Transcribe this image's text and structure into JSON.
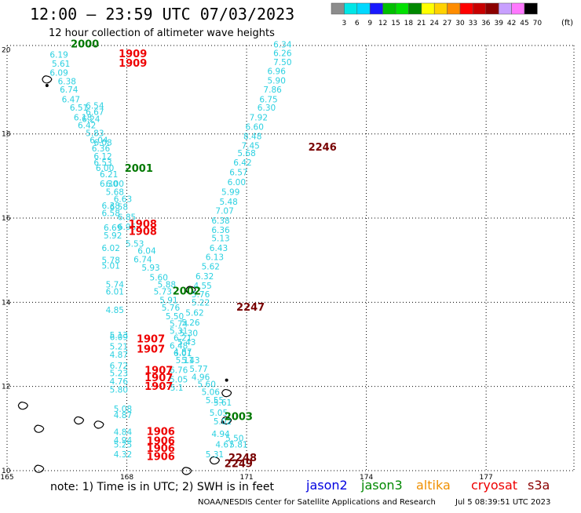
{
  "header": {
    "title": "12:00 – 23:59 UTC 07/03/2023",
    "subtitle": "12 hour collection of altimeter wave heights"
  },
  "legend": {
    "unit": "(ft)",
    "labels": [
      "3",
      "6",
      "9",
      "12",
      "15",
      "18",
      "21",
      "24",
      "27",
      "30",
      "33",
      "36",
      "39",
      "42",
      "45",
      "70"
    ],
    "colors": [
      "#8c8c8c",
      "#00e6e6",
      "#00d8ff",
      "#1919ff",
      "#00c000",
      "#00e000",
      "#008800",
      "#ffff00",
      "#ffd200",
      "#ff8c00",
      "#ff0000",
      "#c80000",
      "#8b0000",
      "#c8a0ff",
      "#ff78ff",
      "#000000"
    ]
  },
  "colors": {
    "track": "#2ad0e0",
    "grid": "#000000",
    "pass_red": "#ee0000",
    "pass_green": "#007800",
    "pass_maroon": "#780000",
    "sat_jason2": "#0000e0",
    "sat_jason3": "#008800",
    "sat_altika": "#f09000",
    "sat_cryosat": "#ee0000",
    "sat_s3a": "#8b0000"
  },
  "axes": {
    "x_ticks": [
      "165",
      "168",
      "171",
      "174",
      "177"
    ],
    "y_ticks": [
      "20",
      "18",
      "16",
      "14",
      "12",
      "10"
    ]
  },
  "track_labels": [
    {
      "t": "6.19",
      "lon": 166.3,
      "lat": 19.81
    },
    {
      "t": "5.61",
      "lon": 166.35,
      "lat": 19.6
    },
    {
      "t": "6.09",
      "lon": 166.3,
      "lat": 19.38
    },
    {
      "t": "6.38",
      "lon": 166.5,
      "lat": 19.18
    },
    {
      "t": "6.74",
      "lon": 166.55,
      "lat": 18.98
    },
    {
      "t": "6.47",
      "lon": 166.6,
      "lat": 18.75
    },
    {
      "t": "6.51",
      "lon": 166.8,
      "lat": 18.55
    },
    {
      "t": "6.54",
      "lon": 167.2,
      "lat": 18.6
    },
    {
      "t": "6.67",
      "lon": 167.2,
      "lat": 18.45
    },
    {
      "t": "6.18",
      "lon": 166.9,
      "lat": 18.32
    },
    {
      "t": "6.24",
      "lon": 167.1,
      "lat": 18.28
    },
    {
      "t": "6.42",
      "lon": 167.0,
      "lat": 18.13
    },
    {
      "t": "5.83",
      "lon": 167.2,
      "lat": 17.95
    },
    {
      "t": "6.04",
      "lon": 167.3,
      "lat": 17.78
    },
    {
      "t": "6.08",
      "lon": 167.4,
      "lat": 17.72
    },
    {
      "t": "6.36",
      "lon": 167.35,
      "lat": 17.58
    },
    {
      "t": "6.12",
      "lon": 167.4,
      "lat": 17.4
    },
    {
      "t": "6.53",
      "lon": 167.4,
      "lat": 17.25
    },
    {
      "t": "6.00",
      "lon": 167.45,
      "lat": 17.12
    },
    {
      "t": "6.21",
      "lon": 167.55,
      "lat": 16.97
    },
    {
      "t": "6.30",
      "lon": 167.55,
      "lat": 16.75
    },
    {
      "t": "6.00",
      "lon": 167.7,
      "lat": 16.75
    },
    {
      "t": "5.68",
      "lon": 167.7,
      "lat": 16.55
    },
    {
      "t": "6.63",
      "lon": 167.9,
      "lat": 16.38
    },
    {
      "t": "6.38",
      "lon": 167.6,
      "lat": 16.22
    },
    {
      "t": "6.58",
      "lon": 167.6,
      "lat": 16.05
    },
    {
      "t": "6.58",
      "lon": 167.8,
      "lat": 16.2
    },
    {
      "t": "6.85",
      "lon": 168.0,
      "lat": 15.95
    },
    {
      "t": "6.69",
      "lon": 167.65,
      "lat": 15.7
    },
    {
      "t": "6.96",
      "lon": 168.0,
      "lat": 15.72
    },
    {
      "t": "5.92",
      "lon": 167.65,
      "lat": 15.52
    },
    {
      "t": "5.53",
      "lon": 168.2,
      "lat": 15.32
    },
    {
      "t": "6.04",
      "lon": 168.5,
      "lat": 15.15
    },
    {
      "t": "6.02",
      "lon": 167.6,
      "lat": 15.22
    },
    {
      "t": "5.78",
      "lon": 167.6,
      "lat": 14.93
    },
    {
      "t": "5.01",
      "lon": 167.6,
      "lat": 14.8
    },
    {
      "t": "6.74",
      "lon": 168.4,
      "lat": 14.95
    },
    {
      "t": "5.93",
      "lon": 168.6,
      "lat": 14.75
    },
    {
      "t": "5.60",
      "lon": 168.8,
      "lat": 14.52
    },
    {
      "t": "5.74",
      "lon": 167.7,
      "lat": 14.35
    },
    {
      "t": "6.01",
      "lon": 167.7,
      "lat": 14.18
    },
    {
      "t": "5.88",
      "lon": 169.0,
      "lat": 14.35
    },
    {
      "t": "5.73",
      "lon": 168.9,
      "lat": 14.18
    },
    {
      "t": "5.91",
      "lon": 169.05,
      "lat": 13.98
    },
    {
      "t": "5.76",
      "lon": 169.1,
      "lat": 13.8
    },
    {
      "t": "4.85",
      "lon": 167.7,
      "lat": 13.75
    },
    {
      "t": "5.50",
      "lon": 169.2,
      "lat": 13.6
    },
    {
      "t": "5.74",
      "lon": 169.3,
      "lat": 13.42
    },
    {
      "t": "5.31",
      "lon": 169.3,
      "lat": 13.25
    },
    {
      "t": "5.13",
      "lon": 167.8,
      "lat": 13.15
    },
    {
      "t": "6.09",
      "lon": 167.8,
      "lat": 13.1
    },
    {
      "t": "6.21",
      "lon": 169.4,
      "lat": 13.08
    },
    {
      "t": "5.21",
      "lon": 167.8,
      "lat": 12.88
    },
    {
      "t": "6.48",
      "lon": 169.3,
      "lat": 12.9
    },
    {
      "t": "6.01",
      "lon": 169.4,
      "lat": 12.72
    },
    {
      "t": "4.87",
      "lon": 167.8,
      "lat": 12.68
    },
    {
      "t": "5.43",
      "lon": 169.6,
      "lat": 12.55
    },
    {
      "t": "6.72",
      "lon": 167.8,
      "lat": 12.42
    },
    {
      "t": "5.77",
      "lon": 169.8,
      "lat": 12.35
    },
    {
      "t": "5.23",
      "lon": 167.8,
      "lat": 12.25
    },
    {
      "t": "4.96",
      "lon": 169.85,
      "lat": 12.15
    },
    {
      "t": "4.76",
      "lon": 167.8,
      "lat": 12.05
    },
    {
      "t": "5.60",
      "lon": 170.0,
      "lat": 11.98
    },
    {
      "t": "5.80",
      "lon": 167.8,
      "lat": 11.85
    },
    {
      "t": "5.06",
      "lon": 170.1,
      "lat": 11.8
    },
    {
      "t": "5.55",
      "lon": 170.2,
      "lat": 11.6
    },
    {
      "t": "5.61",
      "lon": 170.4,
      "lat": 11.55
    },
    {
      "t": "5.08",
      "lon": 167.9,
      "lat": 11.4
    },
    {
      "t": "4.87",
      "lon": 167.9,
      "lat": 11.25
    },
    {
      "t": "5.05",
      "lon": 170.3,
      "lat": 11.3
    },
    {
      "t": "5.02",
      "lon": 170.4,
      "lat": 11.1
    },
    {
      "t": "4.84",
      "lon": 167.9,
      "lat": 10.85
    },
    {
      "t": "4.94",
      "lon": 170.35,
      "lat": 10.8
    },
    {
      "t": "4.94",
      "lon": 167.9,
      "lat": 10.65
    },
    {
      "t": "5.50",
      "lon": 170.7,
      "lat": 10.7
    },
    {
      "t": "5.25",
      "lon": 167.9,
      "lat": 10.55
    },
    {
      "t": "4.67",
      "lon": 170.45,
      "lat": 10.55
    },
    {
      "t": "5.81",
      "lon": 170.8,
      "lat": 10.55
    },
    {
      "t": "4.32",
      "lon": 167.9,
      "lat": 10.32
    },
    {
      "t": "5.31",
      "lon": 170.2,
      "lat": 10.32
    },
    {
      "t": "6.34",
      "lon": 171.9,
      "lat": 20.05
    },
    {
      "t": "6.26",
      "lon": 171.9,
      "lat": 19.85
    },
    {
      "t": "7.50",
      "lon": 171.9,
      "lat": 19.63
    },
    {
      "t": "6.96",
      "lon": 171.75,
      "lat": 19.42
    },
    {
      "t": "5.90",
      "lon": 171.75,
      "lat": 19.2
    },
    {
      "t": "7.86",
      "lon": 171.65,
      "lat": 18.98
    },
    {
      "t": "6.75",
      "lon": 171.55,
      "lat": 18.75
    },
    {
      "t": "6.30",
      "lon": 171.5,
      "lat": 18.55
    },
    {
      "t": "7.92",
      "lon": 171.3,
      "lat": 18.32
    },
    {
      "t": "6.60",
      "lon": 171.2,
      "lat": 18.1
    },
    {
      "t": "8.48",
      "lon": 171.15,
      "lat": 17.87
    },
    {
      "t": "7.45",
      "lon": 171.1,
      "lat": 17.65
    },
    {
      "t": "5.68",
      "lon": 171.0,
      "lat": 17.47
    },
    {
      "t": "6.42",
      "lon": 170.9,
      "lat": 17.25
    },
    {
      "t": "6.57",
      "lon": 170.8,
      "lat": 17.02
    },
    {
      "t": "6.00",
      "lon": 170.75,
      "lat": 16.78
    },
    {
      "t": "5.99",
      "lon": 170.6,
      "lat": 16.55
    },
    {
      "t": "5.48",
      "lon": 170.55,
      "lat": 16.32
    },
    {
      "t": "7.07",
      "lon": 170.45,
      "lat": 16.1
    },
    {
      "t": "6.38",
      "lon": 170.35,
      "lat": 15.87
    },
    {
      "t": "6.36",
      "lon": 170.35,
      "lat": 15.65
    },
    {
      "t": "5.13",
      "lon": 170.35,
      "lat": 15.45
    },
    {
      "t": "6.43",
      "lon": 170.3,
      "lat": 15.22
    },
    {
      "t": "6.13",
      "lon": 170.2,
      "lat": 15.0
    },
    {
      "t": "5.62",
      "lon": 170.1,
      "lat": 14.78
    },
    {
      "t": "6.32",
      "lon": 169.95,
      "lat": 14.55
    },
    {
      "t": "4.55",
      "lon": 169.9,
      "lat": 14.32
    },
    {
      "t": "5.76",
      "lon": 169.85,
      "lat": 14.12
    },
    {
      "t": "5.22",
      "lon": 169.85,
      "lat": 13.92
    },
    {
      "t": "5.62",
      "lon": 169.7,
      "lat": 13.68
    },
    {
      "t": "5.26",
      "lon": 169.6,
      "lat": 13.45
    },
    {
      "t": "5.30",
      "lon": 169.55,
      "lat": 13.2
    },
    {
      "t": "5.43",
      "lon": 169.5,
      "lat": 12.98
    },
    {
      "t": "4.87",
      "lon": 169.4,
      "lat": 12.75
    },
    {
      "t": "5.11",
      "lon": 169.45,
      "lat": 12.55
    },
    {
      "t": "6.76",
      "lon": 169.3,
      "lat": 12.32
    },
    {
      "t": "5.05",
      "lon": 169.3,
      "lat": 12.1
    },
    {
      "t": "5.1",
      "lon": 169.25,
      "lat": 11.9
    }
  ],
  "pass_labels": [
    {
      "t": "2000",
      "lon": 166.95,
      "lat": 20.05,
      "c": "green"
    },
    {
      "t": "1909",
      "lon": 168.15,
      "lat": 19.82,
      "c": "red"
    },
    {
      "t": "1909",
      "lon": 168.15,
      "lat": 19.6,
      "c": "red"
    },
    {
      "t": "2246",
      "lon": 172.9,
      "lat": 17.6,
      "c": "maroon"
    },
    {
      "t": "2001",
      "lon": 168.3,
      "lat": 17.1,
      "c": "green"
    },
    {
      "t": "1908",
      "lon": 168.4,
      "lat": 15.78,
      "c": "red"
    },
    {
      "t": "1908",
      "lon": 168.4,
      "lat": 15.6,
      "c": "red"
    },
    {
      "t": "2002",
      "lon": 169.5,
      "lat": 14.18,
      "c": "green"
    },
    {
      "t": "2247",
      "lon": 171.1,
      "lat": 13.8,
      "c": "maroon"
    },
    {
      "t": "1907",
      "lon": 168.6,
      "lat": 13.05,
      "c": "red"
    },
    {
      "t": "1907",
      "lon": 168.6,
      "lat": 12.8,
      "c": "red"
    },
    {
      "t": "1907",
      "lon": 168.8,
      "lat": 12.3,
      "c": "red"
    },
    {
      "t": "1907",
      "lon": 168.8,
      "lat": 12.12,
      "c": "red"
    },
    {
      "t": "1907",
      "lon": 168.8,
      "lat": 11.92,
      "c": "red"
    },
    {
      "t": "2003",
      "lon": 170.8,
      "lat": 11.2,
      "c": "green"
    },
    {
      "t": "1906",
      "lon": 168.85,
      "lat": 10.85,
      "c": "red"
    },
    {
      "t": "1906",
      "lon": 168.85,
      "lat": 10.62,
      "c": "red"
    },
    {
      "t": "1906",
      "lon": 168.85,
      "lat": 10.45,
      "c": "red"
    },
    {
      "t": "1906",
      "lon": 168.85,
      "lat": 10.25,
      "c": "red"
    },
    {
      "t": "2248",
      "lon": 170.9,
      "lat": 10.22,
      "c": "maroon"
    },
    {
      "t": "2249",
      "lon": 170.8,
      "lat": 10.08,
      "c": "maroon"
    }
  ],
  "islands": [
    {
      "lon": 166.0,
      "lat": 19.3
    },
    {
      "lon": 170.5,
      "lat": 11.85
    },
    {
      "lon": 169.6,
      "lat": 14.3
    },
    {
      "lon": 170.5,
      "lat": 11.2
    },
    {
      "lon": 165.4,
      "lat": 11.55
    },
    {
      "lon": 165.8,
      "lat": 11.0
    },
    {
      "lon": 166.8,
      "lat": 11.2
    },
    {
      "lon": 167.3,
      "lat": 11.1
    },
    {
      "lon": 170.2,
      "lat": 10.25
    },
    {
      "lon": 169.5,
      "lat": 10.0
    },
    {
      "lon": 165.8,
      "lat": 10.05
    }
  ],
  "footer": {
    "note": "note: 1) Time is in UTC; 2) SWH is in feet",
    "sat_jason2": "jason2",
    "sat_jason3": "jason3",
    "sat_altika": "altika",
    "sat_cryosat": "cryosat",
    "sat_s3a": "s3a",
    "credit": "NOAA/NESDIS Center for Satellite Applications and Research",
    "timestamp": "Jul  5 08:39:51 UTC 2023"
  }
}
